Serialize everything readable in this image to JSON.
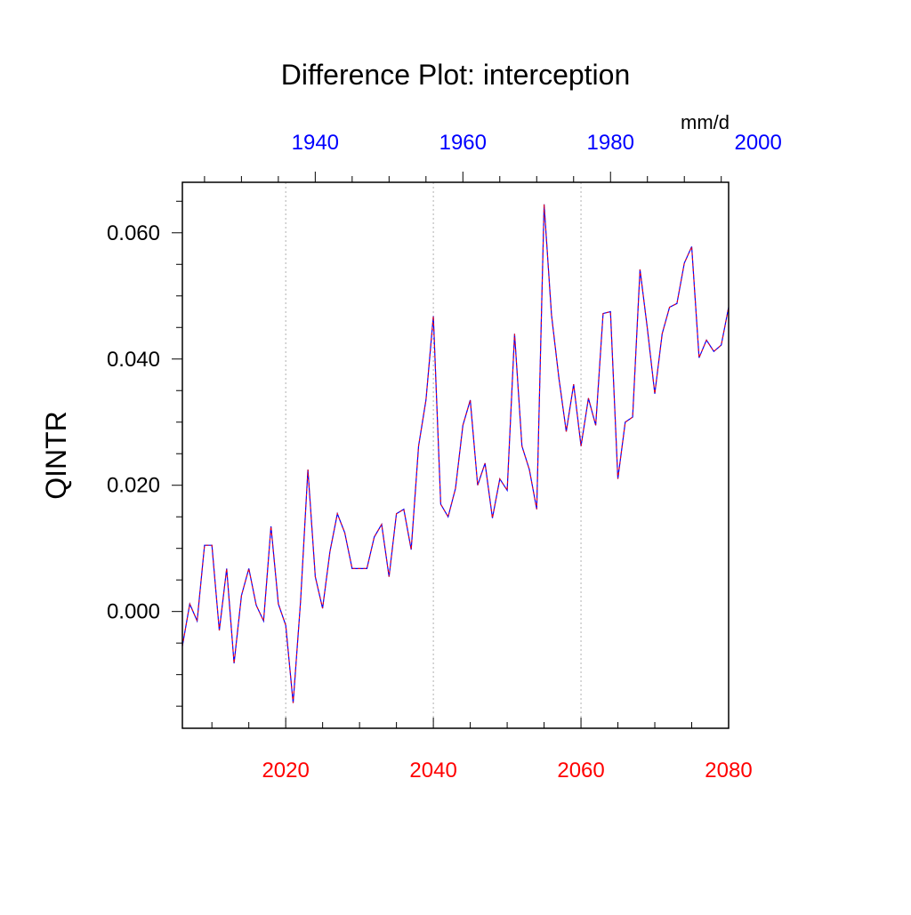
{
  "chart_data": {
    "type": "line",
    "title": "Difference Plot: interception",
    "ylabel": "QINTR",
    "units": "mm/d",
    "xlim": [
      2006,
      2080
    ],
    "ylim": [
      -0.0185,
      0.068
    ],
    "x_ticks": [
      2020,
      2040,
      2060,
      2080
    ],
    "x_tick_labels": [
      "2020",
      "2040",
      "2060",
      "2080"
    ],
    "x_tick_color": "#ff0000",
    "x_top_ticks": [
      1940,
      1960,
      1980,
      2000
    ],
    "x_top_tick_labels": [
      "1940",
      "1960",
      "1980",
      "2000"
    ],
    "x_top_offset_years": -84,
    "x_top_tick_color": "#0000ff",
    "y_ticks": [
      0.0,
      0.02,
      0.04,
      0.06
    ],
    "y_tick_labels": [
      "0.000",
      "0.020",
      "0.040",
      "0.060"
    ],
    "grid": "vertical dotted at major x ticks",
    "line_colors": [
      "#0000ff",
      "#ff0000"
    ],
    "x": [
      2006,
      2007,
      2008,
      2009,
      2010,
      2011,
      2012,
      2013,
      2014,
      2015,
      2016,
      2017,
      2018,
      2019,
      2020,
      2021,
      2022,
      2023,
      2024,
      2025,
      2026,
      2027,
      2028,
      2029,
      2030,
      2031,
      2032,
      2033,
      2034,
      2035,
      2036,
      2037,
      2038,
      2039,
      2040,
      2041,
      2042,
      2043,
      2044,
      2045,
      2046,
      2047,
      2048,
      2049,
      2050,
      2051,
      2052,
      2053,
      2054,
      2055,
      2056,
      2057,
      2058,
      2059,
      2060,
      2061,
      2062,
      2063,
      2064,
      2065,
      2066,
      2067,
      2068,
      2069,
      2070,
      2071,
      2072,
      2073,
      2074,
      2075,
      2076,
      2077,
      2078,
      2079,
      2080
    ],
    "values": [
      -0.0055,
      0.0012,
      -0.0015,
      0.0105,
      0.0105,
      -0.003,
      0.0068,
      -0.0082,
      0.0025,
      0.0068,
      0.001,
      -0.0015,
      0.0135,
      0.0012,
      -0.0022,
      -0.0145,
      0.0015,
      0.0225,
      0.0055,
      0.0005,
      0.0095,
      0.0155,
      0.0125,
      0.0068,
      0.0068,
      0.0068,
      0.0118,
      0.0138,
      0.0055,
      0.0155,
      0.0162,
      0.0098,
      0.0262,
      0.0335,
      0.0468,
      0.017,
      0.015,
      0.0195,
      0.0295,
      0.0335,
      0.02,
      0.0235,
      0.0148,
      0.021,
      0.0192,
      0.044,
      0.0262,
      0.0225,
      0.0162,
      0.0645,
      0.047,
      0.037,
      0.0285,
      0.036,
      0.0262,
      0.0338,
      0.0295,
      0.0472,
      0.0475,
      0.021,
      0.03,
      0.0308,
      0.0542,
      0.0448,
      0.0345,
      0.044,
      0.0482,
      0.0488,
      0.0552,
      0.0578,
      0.0402,
      0.043,
      0.0412,
      0.0422,
      0.0482
    ]
  }
}
